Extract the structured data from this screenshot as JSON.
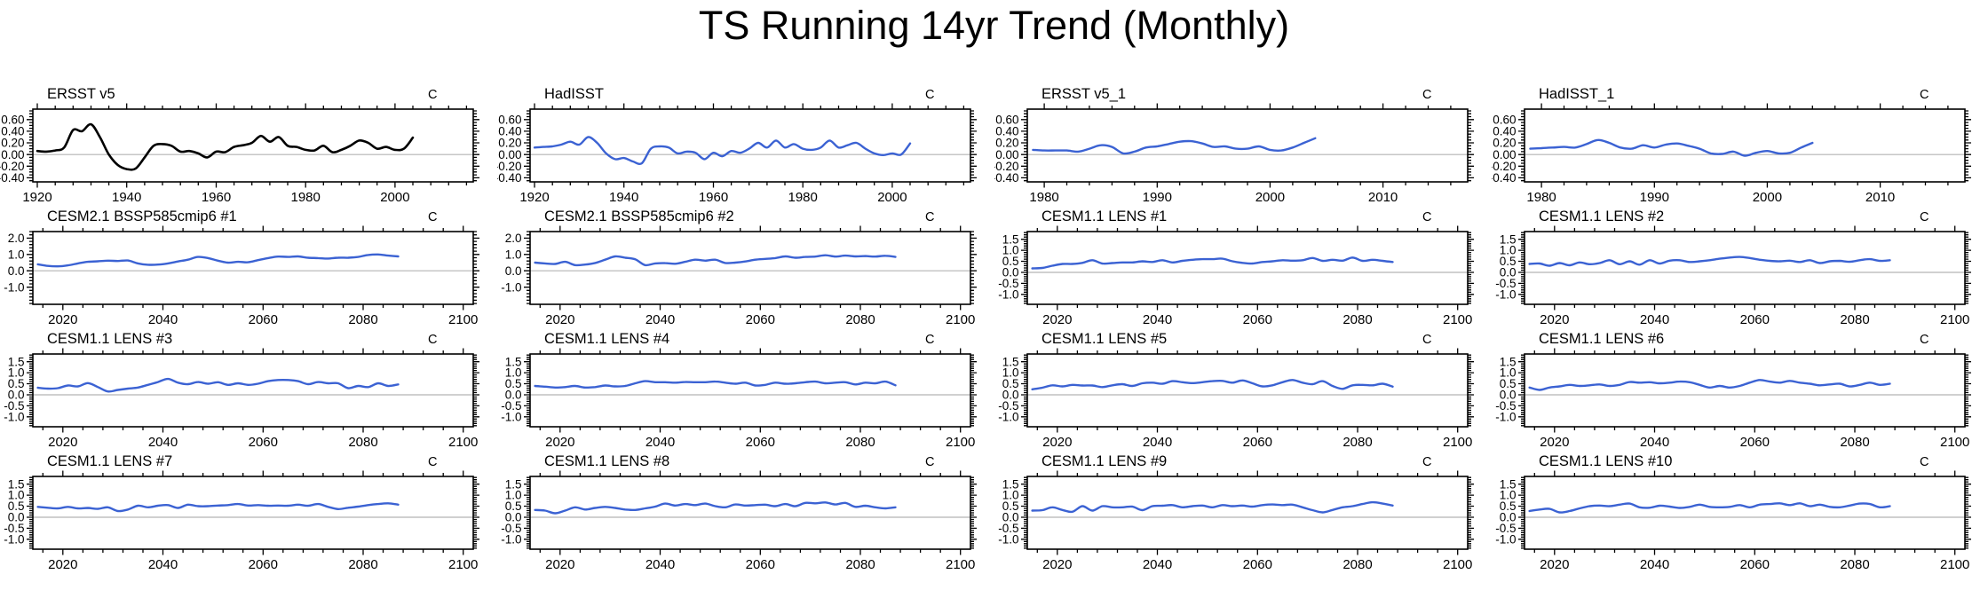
{
  "title": "TS Running 14yr Trend (Monthly)",
  "units_label": "C",
  "colors": {
    "obs_line": "#000000",
    "model_line": "#3b62d3",
    "zero_line": "#b4b4b4",
    "frame": "#000000",
    "background": "#ffffff"
  },
  "chart_data": [
    {
      "id": "ersst-v5",
      "type": "line",
      "title": "ERSST v5",
      "units": "C",
      "line_color": "#000000",
      "line_width": 2.6,
      "xlim": [
        1919,
        2017.5
      ],
      "ylim": [
        -0.47,
        0.78
      ],
      "x_major_ticks": [
        1920,
        1940,
        1960,
        1980,
        2000
      ],
      "x_minor_step": 4,
      "y_major_ticks": [
        0.6,
        0.4,
        0.2,
        0.0,
        -0.2,
        -0.4
      ],
      "y_tick_labels": [
        "0.60",
        "0.40",
        "0.20",
        "0.00",
        "-0.20",
        "-0.40"
      ],
      "y_minor_step": 0.05,
      "x_start": 1920,
      "x_step": 2,
      "values": [
        0.06,
        0.05,
        0.07,
        0.12,
        0.42,
        0.4,
        0.52,
        0.3,
        0.0,
        -0.18,
        -0.25,
        -0.24,
        -0.05,
        0.15,
        0.18,
        0.15,
        0.05,
        0.06,
        0.02,
        -0.05,
        0.05,
        0.04,
        0.13,
        0.16,
        0.2,
        0.32,
        0.22,
        0.3,
        0.15,
        0.13,
        0.08,
        0.07,
        0.15,
        0.04,
        0.08,
        0.15,
        0.24,
        0.2,
        0.1,
        0.13,
        0.08,
        0.1,
        0.29
      ]
    },
    {
      "id": "hadisst",
      "type": "line",
      "title": "HadISST",
      "units": "C",
      "line_color": "#3b62d3",
      "line_width": 2.4,
      "xlim": [
        1919,
        2017.5
      ],
      "ylim": [
        -0.47,
        0.78
      ],
      "x_major_ticks": [
        1920,
        1940,
        1960,
        1980,
        2000
      ],
      "x_minor_step": 4,
      "y_major_ticks": [
        0.6,
        0.4,
        0.2,
        0.0,
        -0.2,
        -0.4
      ],
      "y_tick_labels": [
        "0.60",
        "0.40",
        "0.20",
        "0.00",
        "-0.20",
        "-0.40"
      ],
      "y_minor_step": 0.05,
      "x_start": 1920,
      "x_step": 2,
      "values": [
        0.12,
        0.13,
        0.14,
        0.17,
        0.22,
        0.17,
        0.3,
        0.2,
        0.02,
        -0.08,
        -0.06,
        -0.12,
        -0.15,
        0.1,
        0.14,
        0.12,
        0.02,
        0.05,
        0.03,
        -0.08,
        0.03,
        -0.03,
        0.06,
        0.03,
        0.1,
        0.2,
        0.12,
        0.24,
        0.12,
        0.18,
        0.1,
        0.08,
        0.12,
        0.24,
        0.12,
        0.16,
        0.2,
        0.1,
        0.02,
        -0.01,
        0.02,
        0.0,
        0.19
      ]
    },
    {
      "id": "ersst-v5-1",
      "type": "line",
      "title": "ERSST v5_1",
      "units": "C",
      "line_color": "#3b62d3",
      "line_width": 2.4,
      "xlim": [
        1978.5,
        2017.5
      ],
      "ylim": [
        -0.47,
        0.78
      ],
      "x_major_ticks": [
        1980,
        1990,
        2000,
        2010
      ],
      "x_minor_step": 2,
      "y_major_ticks": [
        0.6,
        0.4,
        0.2,
        0.0,
        -0.2,
        -0.4
      ],
      "y_tick_labels": [
        "0.60",
        "0.40",
        "0.20",
        "0.00",
        "-0.20",
        "-0.40"
      ],
      "y_minor_step": 0.05,
      "x_start": 1979,
      "x_step": 1,
      "values": [
        0.08,
        0.07,
        0.07,
        0.07,
        0.05,
        0.1,
        0.16,
        0.13,
        0.02,
        0.05,
        0.12,
        0.14,
        0.18,
        0.22,
        0.23,
        0.19,
        0.13,
        0.14,
        0.1,
        0.1,
        0.14,
        0.08,
        0.07,
        0.12,
        0.2,
        0.28
      ]
    },
    {
      "id": "hadisst-1",
      "type": "line",
      "title": "HadISST_1",
      "units": "C",
      "line_color": "#3b62d3",
      "line_width": 2.4,
      "xlim": [
        1978.5,
        2017.5
      ],
      "ylim": [
        -0.47,
        0.78
      ],
      "x_major_ticks": [
        1980,
        1990,
        2000,
        2010
      ],
      "x_minor_step": 2,
      "y_major_ticks": [
        0.6,
        0.4,
        0.2,
        0.0,
        -0.2,
        -0.4
      ],
      "y_tick_labels": [
        "0.60",
        "0.40",
        "0.20",
        "0.00",
        "-0.20",
        "-0.40"
      ],
      "y_minor_step": 0.05,
      "x_start": 1979,
      "x_step": 1,
      "values": [
        0.1,
        0.11,
        0.12,
        0.13,
        0.12,
        0.18,
        0.25,
        0.2,
        0.12,
        0.1,
        0.16,
        0.12,
        0.17,
        0.19,
        0.15,
        0.1,
        0.02,
        0.01,
        0.05,
        -0.02,
        0.03,
        0.06,
        0.02,
        0.03,
        0.12,
        0.2
      ]
    },
    {
      "id": "cesm21-bssp585cmip6-1",
      "type": "line",
      "title": "CESM2.1 BSSP585cmip6 #1",
      "units": "C",
      "line_color": "#3b62d3",
      "line_width": 2.4,
      "xlim": [
        2014,
        2102
      ],
      "ylim": [
        -2.05,
        2.4
      ],
      "x_major_ticks": [
        2020,
        2040,
        2060,
        2080,
        2100
      ],
      "x_minor_step": 4,
      "y_major_ticks": [
        2.0,
        1.0,
        0.0,
        -1.0
      ],
      "y_tick_labels": [
        "2.0",
        "1.0",
        "0.0",
        "-1.0"
      ],
      "y_minor_step": 0.2,
      "x_start": 2015,
      "x_step": 2,
      "values": [
        0.4,
        0.3,
        0.27,
        0.33,
        0.45,
        0.55,
        0.58,
        0.62,
        0.6,
        0.63,
        0.45,
        0.37,
        0.38,
        0.45,
        0.57,
        0.68,
        0.85,
        0.78,
        0.62,
        0.5,
        0.55,
        0.52,
        0.65,
        0.78,
        0.87,
        0.85,
        0.88,
        0.8,
        0.78,
        0.75,
        0.8,
        0.8,
        0.85,
        0.97,
        1.0,
        0.93,
        0.88
      ]
    },
    {
      "id": "cesm21-bssp585cmip6-2",
      "type": "line",
      "title": "CESM2.1 BSSP585cmip6 #2",
      "units": "C",
      "line_color": "#3b62d3",
      "line_width": 2.4,
      "xlim": [
        2014,
        2102
      ],
      "ylim": [
        -2.05,
        2.4
      ],
      "x_major_ticks": [
        2020,
        2040,
        2060,
        2080,
        2100
      ],
      "x_minor_step": 4,
      "y_major_ticks": [
        2.0,
        1.0,
        0.0,
        -1.0
      ],
      "y_tick_labels": [
        "2.0",
        "1.0",
        "0.0",
        "-1.0"
      ],
      "y_minor_step": 0.2,
      "x_start": 2015,
      "x_step": 2,
      "values": [
        0.5,
        0.45,
        0.42,
        0.55,
        0.35,
        0.38,
        0.48,
        0.68,
        0.88,
        0.8,
        0.7,
        0.35,
        0.45,
        0.47,
        0.43,
        0.55,
        0.68,
        0.62,
        0.68,
        0.48,
        0.5,
        0.57,
        0.68,
        0.73,
        0.78,
        0.88,
        0.8,
        0.85,
        0.87,
        0.95,
        0.87,
        0.93,
        0.88,
        0.9,
        0.87,
        0.92,
        0.85
      ]
    },
    {
      "id": "cesm11-lens-1",
      "type": "line",
      "title": "CESM1.1 LENS #1",
      "units": "C",
      "line_color": "#3b62d3",
      "line_width": 2.4,
      "xlim": [
        2014,
        2102
      ],
      "ylim": [
        -1.45,
        1.85
      ],
      "x_major_ticks": [
        2020,
        2040,
        2060,
        2080,
        2100
      ],
      "x_minor_step": 4,
      "y_major_ticks": [
        1.5,
        1.0,
        0.5,
        0.0,
        -0.5,
        -1.0
      ],
      "y_tick_labels": [
        "1.5",
        "1.0",
        "0.5",
        "0.0",
        "-0.5",
        "-1.0"
      ],
      "y_minor_step": 0.1,
      "x_start": 2015,
      "x_step": 2,
      "values": [
        0.18,
        0.2,
        0.3,
        0.38,
        0.38,
        0.43,
        0.55,
        0.4,
        0.42,
        0.45,
        0.45,
        0.5,
        0.47,
        0.55,
        0.45,
        0.52,
        0.57,
        0.6,
        0.6,
        0.62,
        0.5,
        0.43,
        0.4,
        0.47,
        0.5,
        0.55,
        0.53,
        0.55,
        0.65,
        0.52,
        0.57,
        0.53,
        0.67,
        0.52,
        0.57,
        0.52,
        0.47
      ]
    },
    {
      "id": "cesm11-lens-2",
      "type": "line",
      "title": "CESM1.1 LENS #2",
      "units": "C",
      "line_color": "#3b62d3",
      "line_width": 2.4,
      "xlim": [
        2014,
        2102
      ],
      "ylim": [
        -1.45,
        1.85
      ],
      "x_major_ticks": [
        2020,
        2040,
        2060,
        2080,
        2100
      ],
      "x_minor_step": 4,
      "y_major_ticks": [
        1.5,
        1.0,
        0.5,
        0.0,
        -0.5,
        -1.0
      ],
      "y_tick_labels": [
        "1.5",
        "1.0",
        "0.5",
        "0.0",
        "-0.5",
        "-1.0"
      ],
      "y_minor_step": 0.1,
      "x_start": 2015,
      "x_step": 2,
      "values": [
        0.38,
        0.4,
        0.3,
        0.42,
        0.32,
        0.45,
        0.37,
        0.42,
        0.55,
        0.37,
        0.5,
        0.35,
        0.55,
        0.4,
        0.53,
        0.55,
        0.47,
        0.5,
        0.55,
        0.62,
        0.67,
        0.7,
        0.65,
        0.57,
        0.52,
        0.5,
        0.53,
        0.47,
        0.55,
        0.42,
        0.5,
        0.52,
        0.48,
        0.55,
        0.6,
        0.52,
        0.55
      ]
    },
    {
      "id": "cesm11-lens-3",
      "type": "line",
      "title": "CESM1.1 LENS #3",
      "units": "C",
      "line_color": "#3b62d3",
      "line_width": 2.4,
      "xlim": [
        2014,
        2102
      ],
      "ylim": [
        -1.45,
        1.85
      ],
      "x_major_ticks": [
        2020,
        2040,
        2060,
        2080,
        2100
      ],
      "x_minor_step": 4,
      "y_major_ticks": [
        1.5,
        1.0,
        0.5,
        0.0,
        -0.5,
        -1.0
      ],
      "y_tick_labels": [
        "1.5",
        "1.0",
        "0.5",
        "0.0",
        "-0.5",
        "-1.0"
      ],
      "y_minor_step": 0.1,
      "x_start": 2015,
      "x_step": 2,
      "values": [
        0.32,
        0.28,
        0.3,
        0.42,
        0.38,
        0.53,
        0.35,
        0.15,
        0.22,
        0.28,
        0.33,
        0.45,
        0.58,
        0.72,
        0.55,
        0.48,
        0.58,
        0.5,
        0.57,
        0.45,
        0.52,
        0.45,
        0.5,
        0.62,
        0.67,
        0.67,
        0.62,
        0.48,
        0.58,
        0.52,
        0.52,
        0.3,
        0.4,
        0.35,
        0.52,
        0.4,
        0.47
      ]
    },
    {
      "id": "cesm11-lens-4",
      "type": "line",
      "title": "CESM1.1 LENS #4",
      "units": "C",
      "line_color": "#3b62d3",
      "line_width": 2.4,
      "xlim": [
        2014,
        2102
      ],
      "ylim": [
        -1.45,
        1.85
      ],
      "x_major_ticks": [
        2020,
        2040,
        2060,
        2080,
        2100
      ],
      "x_minor_step": 4,
      "y_major_ticks": [
        1.5,
        1.0,
        0.5,
        0.0,
        -0.5,
        -1.0
      ],
      "y_tick_labels": [
        "1.5",
        "1.0",
        "0.5",
        "0.0",
        "-0.5",
        "-1.0"
      ],
      "y_minor_step": 0.1,
      "x_start": 2015,
      "x_step": 2,
      "values": [
        0.4,
        0.37,
        0.33,
        0.35,
        0.4,
        0.33,
        0.35,
        0.42,
        0.38,
        0.4,
        0.52,
        0.62,
        0.57,
        0.57,
        0.55,
        0.58,
        0.57,
        0.57,
        0.6,
        0.55,
        0.5,
        0.55,
        0.42,
        0.45,
        0.55,
        0.5,
        0.52,
        0.57,
        0.6,
        0.52,
        0.55,
        0.57,
        0.47,
        0.55,
        0.52,
        0.6,
        0.43
      ]
    },
    {
      "id": "cesm11-lens-5",
      "type": "line",
      "title": "CESM1.1 LENS #5",
      "units": "C",
      "line_color": "#3b62d3",
      "line_width": 2.4,
      "xlim": [
        2014,
        2102
      ],
      "ylim": [
        -1.45,
        1.85
      ],
      "x_major_ticks": [
        2020,
        2040,
        2060,
        2080,
        2100
      ],
      "x_minor_step": 4,
      "y_major_ticks": [
        1.5,
        1.0,
        0.5,
        0.0,
        -0.5,
        -1.0
      ],
      "y_tick_labels": [
        "1.5",
        "1.0",
        "0.5",
        "0.0",
        "-0.5",
        "-1.0"
      ],
      "y_minor_step": 0.1,
      "x_start": 2015,
      "x_step": 2,
      "values": [
        0.25,
        0.32,
        0.43,
        0.38,
        0.45,
        0.42,
        0.42,
        0.35,
        0.43,
        0.48,
        0.4,
        0.52,
        0.55,
        0.5,
        0.62,
        0.57,
        0.53,
        0.57,
        0.62,
        0.63,
        0.55,
        0.65,
        0.52,
        0.38,
        0.43,
        0.57,
        0.67,
        0.55,
        0.48,
        0.62,
        0.4,
        0.27,
        0.43,
        0.45,
        0.43,
        0.5,
        0.37
      ]
    },
    {
      "id": "cesm11-lens-6",
      "type": "line",
      "title": "CESM1.1 LENS #6",
      "units": "C",
      "line_color": "#3b62d3",
      "line_width": 2.4,
      "xlim": [
        2014,
        2102
      ],
      "ylim": [
        -1.45,
        1.85
      ],
      "x_major_ticks": [
        2020,
        2040,
        2060,
        2080,
        2100
      ],
      "x_minor_step": 4,
      "y_major_ticks": [
        1.5,
        1.0,
        0.5,
        0.0,
        -0.5,
        -1.0
      ],
      "y_tick_labels": [
        "1.5",
        "1.0",
        "0.5",
        "0.0",
        "-0.5",
        "-1.0"
      ],
      "y_minor_step": 0.1,
      "x_start": 2015,
      "x_step": 2,
      "values": [
        0.33,
        0.22,
        0.33,
        0.38,
        0.45,
        0.4,
        0.43,
        0.47,
        0.4,
        0.45,
        0.58,
        0.55,
        0.57,
        0.52,
        0.55,
        0.6,
        0.57,
        0.45,
        0.33,
        0.4,
        0.33,
        0.4,
        0.55,
        0.67,
        0.6,
        0.55,
        0.63,
        0.55,
        0.5,
        0.43,
        0.47,
        0.5,
        0.38,
        0.45,
        0.55,
        0.45,
        0.5
      ]
    },
    {
      "id": "cesm11-lens-7",
      "type": "line",
      "title": "CESM1.1 LENS #7",
      "units": "C",
      "line_color": "#3b62d3",
      "line_width": 2.4,
      "xlim": [
        2014,
        2102
      ],
      "ylim": [
        -1.45,
        1.85
      ],
      "x_major_ticks": [
        2020,
        2040,
        2060,
        2080,
        2100
      ],
      "x_minor_step": 4,
      "y_major_ticks": [
        1.5,
        1.0,
        0.5,
        0.0,
        -0.5,
        -1.0
      ],
      "y_tick_labels": [
        "1.5",
        "1.0",
        "0.5",
        "0.0",
        "-0.5",
        "-1.0"
      ],
      "y_minor_step": 0.1,
      "x_start": 2015,
      "x_step": 2,
      "values": [
        0.47,
        0.43,
        0.4,
        0.47,
        0.4,
        0.42,
        0.38,
        0.45,
        0.28,
        0.35,
        0.52,
        0.45,
        0.52,
        0.55,
        0.42,
        0.57,
        0.5,
        0.5,
        0.53,
        0.55,
        0.6,
        0.53,
        0.55,
        0.52,
        0.53,
        0.52,
        0.57,
        0.52,
        0.6,
        0.47,
        0.37,
        0.43,
        0.48,
        0.55,
        0.6,
        0.63,
        0.57
      ]
    },
    {
      "id": "cesm11-lens-8",
      "type": "line",
      "title": "CESM1.1 LENS #8",
      "units": "C",
      "line_color": "#3b62d3",
      "line_width": 2.4,
      "xlim": [
        2014,
        2102
      ],
      "ylim": [
        -1.45,
        1.85
      ],
      "x_major_ticks": [
        2020,
        2040,
        2060,
        2080,
        2100
      ],
      "x_minor_step": 4,
      "y_major_ticks": [
        1.5,
        1.0,
        0.5,
        0.0,
        -0.5,
        -1.0
      ],
      "y_tick_labels": [
        "1.5",
        "1.0",
        "0.5",
        "0.0",
        "-0.5",
        "-1.0"
      ],
      "y_minor_step": 0.1,
      "x_start": 2015,
      "x_step": 2,
      "values": [
        0.33,
        0.3,
        0.18,
        0.3,
        0.45,
        0.35,
        0.42,
        0.47,
        0.42,
        0.35,
        0.33,
        0.4,
        0.48,
        0.62,
        0.53,
        0.6,
        0.55,
        0.62,
        0.5,
        0.45,
        0.58,
        0.53,
        0.55,
        0.57,
        0.5,
        0.6,
        0.5,
        0.65,
        0.63,
        0.67,
        0.58,
        0.65,
        0.47,
        0.52,
        0.45,
        0.4,
        0.45
      ]
    },
    {
      "id": "cesm11-lens-9",
      "type": "line",
      "title": "CESM1.1 LENS #9",
      "units": "C",
      "line_color": "#3b62d3",
      "line_width": 2.4,
      "xlim": [
        2014,
        2102
      ],
      "ylim": [
        -1.45,
        1.85
      ],
      "x_major_ticks": [
        2020,
        2040,
        2060,
        2080,
        2100
      ],
      "x_minor_step": 4,
      "y_major_ticks": [
        1.5,
        1.0,
        0.5,
        0.0,
        -0.5,
        -1.0
      ],
      "y_tick_labels": [
        "1.5",
        "1.0",
        "0.5",
        "0.0",
        "-0.5",
        "-1.0"
      ],
      "y_minor_step": 0.1,
      "x_start": 2015,
      "x_step": 2,
      "values": [
        0.3,
        0.32,
        0.45,
        0.33,
        0.25,
        0.5,
        0.3,
        0.5,
        0.45,
        0.45,
        0.48,
        0.32,
        0.5,
        0.52,
        0.55,
        0.45,
        0.5,
        0.53,
        0.45,
        0.55,
        0.5,
        0.53,
        0.48,
        0.55,
        0.58,
        0.55,
        0.57,
        0.45,
        0.32,
        0.22,
        0.33,
        0.45,
        0.5,
        0.6,
        0.68,
        0.62,
        0.53
      ]
    },
    {
      "id": "cesm11-lens-10",
      "type": "line",
      "title": "CESM1.1 LENS #10",
      "units": "C",
      "line_color": "#3b62d3",
      "line_width": 2.4,
      "xlim": [
        2014,
        2102
      ],
      "ylim": [
        -1.45,
        1.85
      ],
      "x_major_ticks": [
        2020,
        2040,
        2060,
        2080,
        2100
      ],
      "x_minor_step": 4,
      "y_major_ticks": [
        1.5,
        1.0,
        0.5,
        0.0,
        -0.5,
        -1.0
      ],
      "y_tick_labels": [
        "1.5",
        "1.0",
        "0.5",
        "0.0",
        "-0.5",
        "-1.0"
      ],
      "y_minor_step": 0.1,
      "x_start": 2015,
      "x_step": 2,
      "values": [
        0.28,
        0.35,
        0.38,
        0.22,
        0.28,
        0.4,
        0.5,
        0.53,
        0.5,
        0.57,
        0.62,
        0.45,
        0.43,
        0.52,
        0.48,
        0.42,
        0.47,
        0.57,
        0.47,
        0.45,
        0.47,
        0.55,
        0.45,
        0.57,
        0.6,
        0.63,
        0.55,
        0.63,
        0.5,
        0.57,
        0.47,
        0.45,
        0.53,
        0.62,
        0.6,
        0.45,
        0.5
      ]
    }
  ]
}
